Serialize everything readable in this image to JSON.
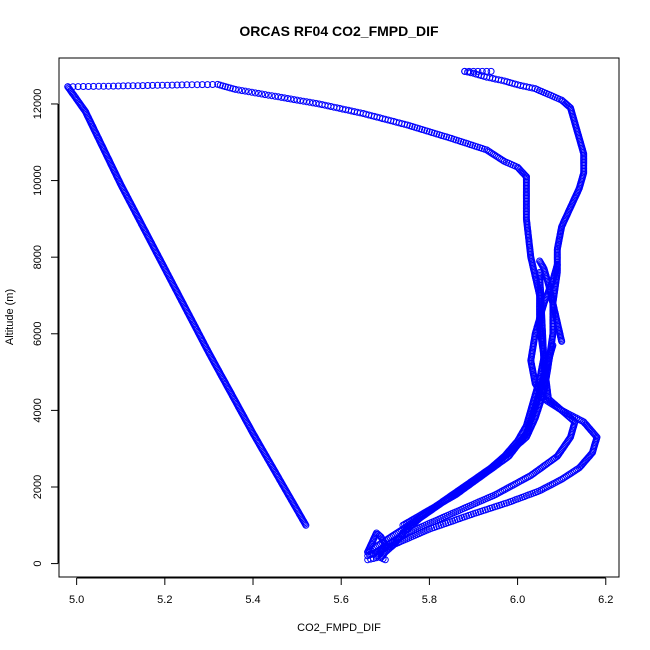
{
  "chart_data": {
    "type": "scatter",
    "title": "ORCAS RF04 CO2_FMPD_DIF",
    "xlabel": "CO2_FMPD_DIF",
    "ylabel": "Altitude (m)",
    "xlim": [
      4.96,
      6.23
    ],
    "ylim": [
      -350,
      13200
    ],
    "xticks": [
      5.0,
      5.2,
      5.4,
      5.6,
      5.8,
      6.0,
      6.2
    ],
    "xtick_labels": [
      "5.0",
      "5.2",
      "5.4",
      "5.6",
      "5.8",
      "6.0",
      "6.2"
    ],
    "yticks": [
      0,
      2000,
      4000,
      6000,
      8000,
      10000,
      12000
    ],
    "ytick_labels": [
      "0",
      "2000",
      "4000",
      "6000",
      "8000",
      "10000",
      "12000"
    ],
    "grid": false,
    "legend": "none",
    "marker": "open-circle",
    "color": "#0000ff",
    "paths": [
      {
        "x": [
          5.52,
          5.4,
          5.3,
          5.2,
          5.1,
          5.02,
          4.98
        ],
        "y": [
          1000,
          3400,
          5500,
          7700,
          9900,
          11800,
          12450
        ]
      },
      {
        "x": [
          4.98,
          5.05,
          5.15,
          5.25,
          5.32,
          5.36,
          5.45,
          5.55,
          5.65,
          5.75,
          5.85,
          5.93,
          5.97,
          6.0,
          6.02
        ],
        "y": [
          12450,
          12460,
          12480,
          12500,
          12510,
          12380,
          12200,
          12000,
          11750,
          11450,
          11100,
          10800,
          10500,
          10350,
          10100
        ]
      },
      {
        "x": [
          6.02,
          6.02,
          6.03,
          6.05,
          6.05,
          6.06,
          6.05,
          6.04,
          6.03,
          6.02,
          6.0,
          5.97,
          5.93,
          5.88,
          5.83,
          5.78,
          5.74,
          5.72,
          5.7,
          5.69,
          5.7
        ],
        "y": [
          10100,
          9000,
          8000,
          7000,
          6200,
          5400,
          4800,
          4400,
          4000,
          3600,
          3200,
          2800,
          2400,
          2000,
          1600,
          1200,
          800,
          500,
          300,
          150,
          100
        ]
      },
      {
        "x": [
          5.66,
          5.7,
          5.74,
          5.79,
          5.84,
          5.89,
          5.94,
          5.98,
          6.02,
          6.04,
          6.06,
          6.07,
          6.08,
          6.08,
          6.09,
          6.09,
          6.1,
          6.12,
          6.14,
          6.15,
          6.15,
          6.14,
          6.13,
          6.12,
          6.1,
          6.08,
          6.06,
          6.04,
          6.02,
          6.0,
          5.97,
          5.93,
          5.9,
          5.88
        ],
        "y": [
          300,
          600,
          900,
          1300,
          1700,
          2100,
          2500,
          2900,
          3300,
          3800,
          4500,
          5200,
          6000,
          6800,
          7600,
          8200,
          8800,
          9300,
          9800,
          10200,
          10700,
          11100,
          11500,
          11900,
          12100,
          12200,
          12300,
          12400,
          12450,
          12500,
          12600,
          12700,
          12800,
          12850
        ]
      },
      {
        "x": [
          5.88,
          5.9,
          5.92,
          5.94
        ],
        "y": [
          12850,
          12850,
          12850,
          12850
        ]
      },
      {
        "x": [
          5.66,
          5.72,
          5.8,
          5.9,
          5.98,
          6.05,
          6.1,
          6.14,
          6.17,
          6.18,
          6.15,
          6.1,
          6.07,
          6.06,
          6.05
        ],
        "y": [
          200,
          500,
          900,
          1300,
          1600,
          1900,
          2200,
          2500,
          2900,
          3300,
          3700,
          4000,
          4300,
          5200,
          7600
        ]
      },
      {
        "x": [
          5.68,
          5.75,
          5.85,
          5.95,
          6.03,
          6.09,
          6.12,
          6.13,
          6.1,
          6.06,
          6.04,
          6.03,
          6.04,
          6.06,
          6.08,
          6.09
        ],
        "y": [
          300,
          800,
          1300,
          1800,
          2300,
          2800,
          3300,
          3700,
          4000,
          4300,
          4700,
          5300,
          6000,
          6800,
          7400,
          7800
        ]
      },
      {
        "x": [
          5.74,
          5.8,
          5.86,
          5.92,
          5.98,
          6.02,
          6.04,
          6.06,
          6.08
        ],
        "y": [
          1000,
          1400,
          1800,
          2300,
          2800,
          3400,
          4100,
          4900,
          5700
        ]
      },
      {
        "x": [
          5.66,
          5.68,
          5.69,
          5.7,
          5.69,
          5.68,
          5.66
        ],
        "y": [
          100,
          150,
          300,
          500,
          700,
          800,
          300
        ]
      },
      {
        "x": [
          6.05,
          6.06,
          6.07,
          6.08,
          6.09,
          6.1
        ],
        "y": [
          7900,
          7700,
          7300,
          6800,
          6300,
          5800
        ]
      }
    ]
  }
}
